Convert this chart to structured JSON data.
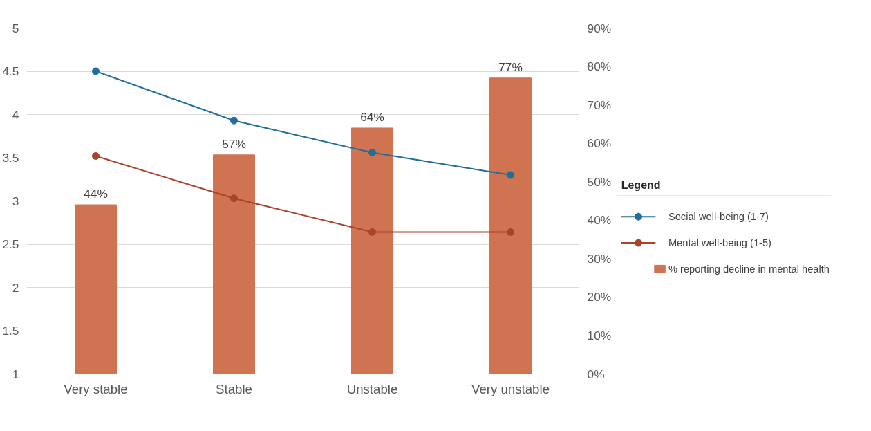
{
  "chart_data": {
    "type": "bar",
    "legend_title": "Legend",
    "categories": [
      "Very stable",
      "Stable",
      "Unstable",
      "Very unstable"
    ],
    "series": [
      {
        "name": "% reporting decline in mental health",
        "axis": "y2",
        "color": "#d07350",
        "values": [
          44,
          57,
          64,
          77
        ],
        "value_labels": [
          "44%",
          "57%",
          "64%",
          "77%"
        ]
      },
      {
        "name": "Social well-being (1-7)",
        "type": "line",
        "color": "#1f6e9c",
        "values": [
          4.5,
          3.93,
          3.56,
          3.3
        ]
      },
      {
        "name": "Mental well-being (1-5)",
        "type": "line",
        "color": "#a9432a",
        "values": [
          3.52,
          3.03,
          2.64,
          2.64
        ]
      }
    ],
    "ylim": [
      1,
      5
    ],
    "yticks": [
      1,
      1.5,
      2,
      2.5,
      3,
      3.5,
      4,
      4.5,
      5
    ],
    "y2lim": [
      0,
      90
    ],
    "y2ticks": [
      {
        "value": 0,
        "label": "0%"
      },
      {
        "value": 10,
        "label": "10%"
      },
      {
        "value": 20,
        "label": "20%"
      },
      {
        "value": 30,
        "label": "30%"
      },
      {
        "value": 40,
        "label": "40%"
      },
      {
        "value": 50,
        "label": "50%"
      },
      {
        "value": 60,
        "label": "60%"
      },
      {
        "value": 70,
        "label": "70%"
      },
      {
        "value": 80,
        "label": "80%"
      },
      {
        "value": 90,
        "label": "90%"
      }
    ],
    "grid": "y",
    "legend": "right",
    "marker": "circle",
    "line_style": "solid"
  }
}
